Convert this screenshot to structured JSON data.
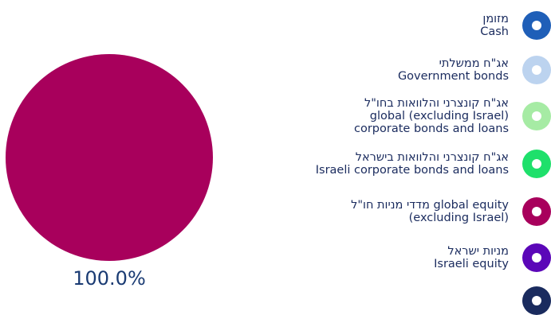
{
  "chart_data": {
    "type": "pie",
    "slices": [
      {
        "label_he": "מזומן",
        "label_en": "Cash",
        "value": 0,
        "color": "#1f5fb8"
      },
      {
        "label_he": "אג\"ח ממשלתי",
        "label_en": "Government bonds",
        "value": 0,
        "color": "#bcd3ef"
      },
      {
        "label_he": "אג\"ח קונצרני והלוואות בחו\"ל",
        "label_en": "global (excluding Israel) corporate bonds and loans",
        "value": 0,
        "color": "#a6eba4"
      },
      {
        "label_he": "אג\"ח קונצרני והלוואות בישראל",
        "label_en": "Israeli corporate bonds and loans",
        "value": 0,
        "color": "#1ee06b"
      },
      {
        "label_he": "מדדי מניות חו\"ל",
        "label_en": "global equity (excluding Israel)",
        "value": 100.0,
        "color": "#a8005c"
      },
      {
        "label_he": "מניות ישראל",
        "label_en": "Israeli equity",
        "value": 0,
        "color": "#5b07b8"
      }
    ],
    "data_labels": [
      "100.0%"
    ],
    "pie_color": "#a8005c",
    "legend": "right"
  },
  "legend": {
    "items": [
      {
        "lines": [
          "מזומן",
          "Cash"
        ],
        "color": "#1f5fb8"
      },
      {
        "lines": [
          "אג\"ח ממשלתי",
          "Government bonds"
        ],
        "color": "#bcd3ef"
      },
      {
        "lines": [
          "אג\"ח קונצרני והלוואות בחו\"ל",
          "global (excluding Israel)",
          "corporate bonds and loans"
        ],
        "color": "#a6eba4"
      },
      {
        "lines": [
          "אג\"ח קונצרני והלוואות בישראל",
          "Israeli corporate bonds and loans"
        ],
        "color": "#1ee06b"
      },
      {
        "lines": [
          "מדדי מניות חו\"ל global equity",
          "(excluding Israel)"
        ],
        "color": "#a8005c"
      },
      {
        "lines": [
          "מניות ישראל",
          "Israeli equity"
        ],
        "color": "#5b07b8"
      },
      {
        "lines": [],
        "color": "#1a2b5e"
      }
    ]
  }
}
